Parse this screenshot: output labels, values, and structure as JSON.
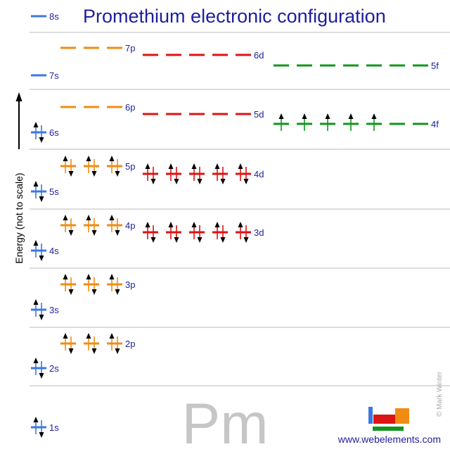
{
  "title": "Promethium electronic configuration",
  "axis_label": "Energy (not to scale)",
  "symbol": "Pm",
  "copyright": "© Mark Winter",
  "website": "www.webelements.com",
  "colors": {
    "s": "#3c78e0",
    "p": "#f08c14",
    "d": "#dc1414",
    "f": "#10961e",
    "title": "#1e1ea0",
    "label": "#1e1ea0",
    "separator": "#bbbbbb",
    "symbol": "#c6c6c6",
    "arrow": "#000000"
  },
  "subshells": [
    {
      "name": "1s",
      "type": "s",
      "electrons": 2
    },
    {
      "name": "2s",
      "type": "s",
      "electrons": 2
    },
    {
      "name": "2p",
      "type": "p",
      "electrons": 6
    },
    {
      "name": "3s",
      "type": "s",
      "electrons": 2
    },
    {
      "name": "3p",
      "type": "p",
      "electrons": 6
    },
    {
      "name": "4s",
      "type": "s",
      "electrons": 2
    },
    {
      "name": "3d",
      "type": "d",
      "electrons": 10
    },
    {
      "name": "4p",
      "type": "p",
      "electrons": 6
    },
    {
      "name": "5s",
      "type": "s",
      "electrons": 2
    },
    {
      "name": "4d",
      "type": "d",
      "electrons": 10
    },
    {
      "name": "5p",
      "type": "p",
      "electrons": 6
    },
    {
      "name": "6s",
      "type": "s",
      "electrons": 2
    },
    {
      "name": "4f",
      "type": "f",
      "electrons": 5
    },
    {
      "name": "5d",
      "type": "d",
      "electrons": 0
    },
    {
      "name": "6p",
      "type": "p",
      "electrons": 0
    },
    {
      "name": "7s",
      "type": "s",
      "electrons": 0
    },
    {
      "name": "5f",
      "type": "f",
      "electrons": 0
    },
    {
      "name": "6d",
      "type": "d",
      "electrons": 0
    },
    {
      "name": "7p",
      "type": "p",
      "electrons": 0
    },
    {
      "name": "8s",
      "type": "s",
      "electrons": 0
    }
  ]
}
